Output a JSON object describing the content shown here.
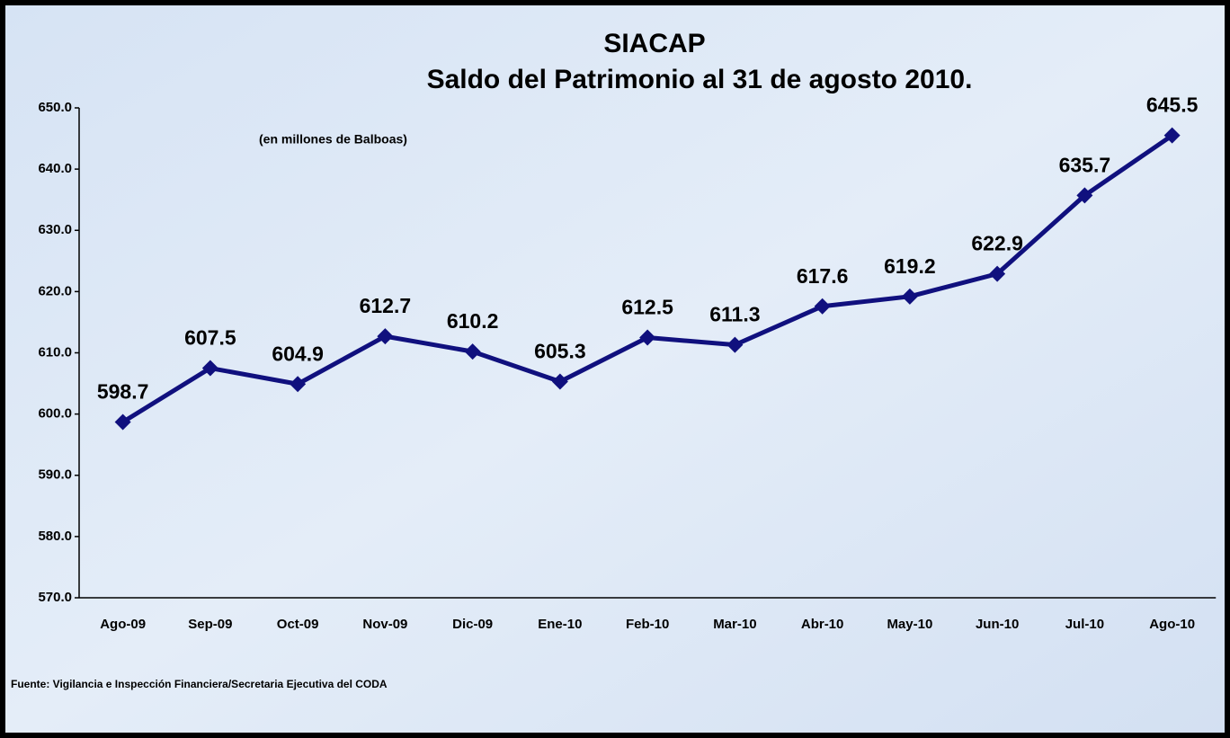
{
  "chart_data": {
    "type": "line",
    "title": [
      "SIACAP",
      "Saldo del Patrimonio al 31 de agosto 2010."
    ],
    "subtitle": "(en millones de Balboas)",
    "source": "Fuente: Vigilancia e Inspección Financiera/Secretaria Ejecutiva del CODA",
    "categories": [
      "Ago-09",
      "Sep-09",
      "Oct-09",
      "Nov-09",
      "Dic-09",
      "Ene-10",
      "Feb-10",
      "Mar-10",
      "Abr-10",
      "May-10",
      "Jun-10",
      "Jul-10",
      "Ago-10"
    ],
    "series": [
      {
        "name": "Saldo del Patrimonio",
        "color": "#10107e",
        "values": [
          598.7,
          607.5,
          604.9,
          612.7,
          610.2,
          605.3,
          612.5,
          611.3,
          617.6,
          619.2,
          622.9,
          635.7,
          645.5
        ]
      }
    ],
    "ylim": [
      570,
      650
    ],
    "yticks": [
      {
        "value": 570,
        "label": "570.0"
      },
      {
        "value": 580,
        "label": "580.0"
      },
      {
        "value": 590,
        "label": "590.0"
      },
      {
        "value": 600,
        "label": "600.0"
      },
      {
        "value": 610,
        "label": "610.0"
      },
      {
        "value": 620,
        "label": "620.0"
      },
      {
        "value": 630,
        "label": "630.0"
      },
      {
        "value": 640,
        "label": "640.0"
      },
      {
        "value": 650,
        "label": "650.0"
      }
    ],
    "grid": false
  }
}
